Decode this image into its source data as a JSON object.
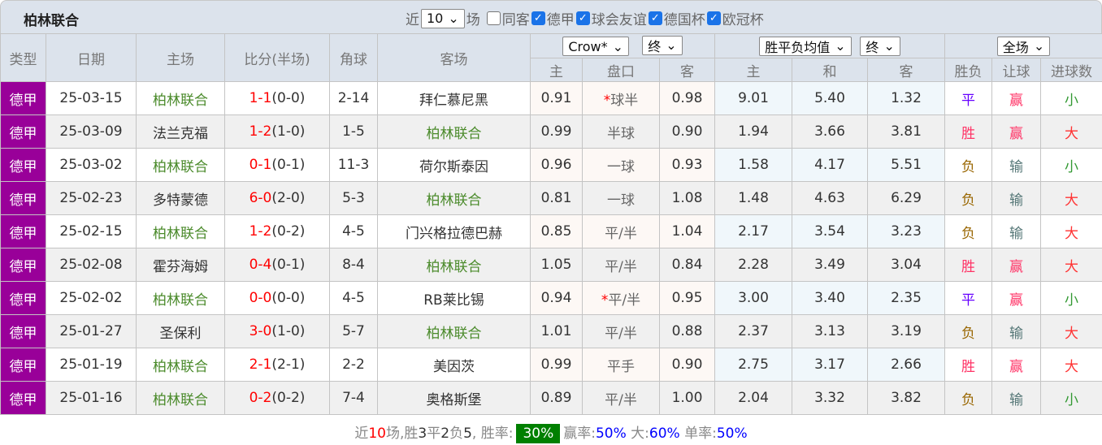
{
  "title": "柏林联合",
  "filters": {
    "recent_prefix": "近",
    "recent_value": "10",
    "recent_suffix": "场",
    "same_host": "同客",
    "leagues": [
      "德甲",
      "球会友谊",
      "德国杯",
      "欧冠杯"
    ]
  },
  "header": {
    "type": "类型",
    "date": "日期",
    "home": "主场",
    "score": "比分(半场)",
    "corner": "角球",
    "away": "客场",
    "company_select": "Crow*",
    "asia_stage": "终",
    "euro_select": "胜平负均值",
    "euro_stage": "终",
    "scope_select": "全场",
    "asia_home": "主",
    "asia_line": "盘口",
    "asia_away": "客",
    "euro_home": "主",
    "euro_draw": "和",
    "euro_away": "客",
    "result": "胜负",
    "handicap": "让球",
    "goals": "进球数"
  },
  "rows": [
    {
      "type": "德甲",
      "date": "25-03-15",
      "home": "柏林联合",
      "score": "1-1",
      "half": "(0-0)",
      "corner": "2-14",
      "away": "拜仁慕尼黑",
      "ah": "0.91",
      "star": "*",
      "line": "球半",
      "aa": "0.98",
      "eh": "9.01",
      "ed": "5.40",
      "ea": "1.32",
      "res": "平",
      "hc": "赢",
      "gl": "小"
    },
    {
      "type": "德甲",
      "date": "25-03-09",
      "home": "法兰克福",
      "score": "1-2",
      "half": "(1-0)",
      "corner": "1-5",
      "away": "柏林联合",
      "ah": "0.99",
      "star": "",
      "line": "半球",
      "aa": "0.90",
      "eh": "1.94",
      "ed": "3.66",
      "ea": "3.81",
      "res": "胜",
      "hc": "赢",
      "gl": "大"
    },
    {
      "type": "德甲",
      "date": "25-03-02",
      "home": "柏林联合",
      "score": "0-1",
      "half": "(0-1)",
      "corner": "11-3",
      "away": "荷尔斯泰因",
      "ah": "0.96",
      "star": "",
      "line": "一球",
      "aa": "0.93",
      "eh": "1.58",
      "ed": "4.17",
      "ea": "5.51",
      "res": "负",
      "hc": "输",
      "gl": "小"
    },
    {
      "type": "德甲",
      "date": "25-02-23",
      "home": "多特蒙德",
      "score": "6-0",
      "half": "(2-0)",
      "corner": "5-3",
      "away": "柏林联合",
      "ah": "0.81",
      "star": "",
      "line": "一球",
      "aa": "1.08",
      "eh": "1.48",
      "ed": "4.63",
      "ea": "6.29",
      "res": "负",
      "hc": "输",
      "gl": "大"
    },
    {
      "type": "德甲",
      "date": "25-02-15",
      "home": "柏林联合",
      "score": "1-2",
      "half": "(0-2)",
      "corner": "4-5",
      "away": "门兴格拉德巴赫",
      "ah": "0.85",
      "star": "",
      "line": "平/半",
      "aa": "1.04",
      "eh": "2.17",
      "ed": "3.54",
      "ea": "3.23",
      "res": "负",
      "hc": "输",
      "gl": "大"
    },
    {
      "type": "德甲",
      "date": "25-02-08",
      "home": "霍芬海姆",
      "score": "0-4",
      "half": "(0-1)",
      "corner": "8-4",
      "away": "柏林联合",
      "ah": "1.05",
      "star": "",
      "line": "平/半",
      "aa": "0.84",
      "eh": "2.28",
      "ed": "3.49",
      "ea": "3.04",
      "res": "胜",
      "hc": "赢",
      "gl": "大"
    },
    {
      "type": "德甲",
      "date": "25-02-02",
      "home": "柏林联合",
      "score": "0-0",
      "half": "(0-0)",
      "corner": "4-5",
      "away": "RB莱比锡",
      "ah": "0.94",
      "star": "*",
      "line": "平/半",
      "aa": "0.95",
      "eh": "3.00",
      "ed": "3.40",
      "ea": "2.35",
      "res": "平",
      "hc": "赢",
      "gl": "小"
    },
    {
      "type": "德甲",
      "date": "25-01-27",
      "home": "圣保利",
      "score": "3-0",
      "half": "(1-0)",
      "corner": "5-7",
      "away": "柏林联合",
      "ah": "1.01",
      "star": "",
      "line": "平/半",
      "aa": "0.88",
      "eh": "2.37",
      "ed": "3.13",
      "ea": "3.19",
      "res": "负",
      "hc": "输",
      "gl": "大"
    },
    {
      "type": "德甲",
      "date": "25-01-19",
      "home": "柏林联合",
      "score": "2-1",
      "half": "(2-1)",
      "corner": "2-2",
      "away": "美因茨",
      "ah": "0.99",
      "star": "",
      "line": "平手",
      "aa": "0.90",
      "eh": "2.75",
      "ed": "3.17",
      "ea": "2.66",
      "res": "胜",
      "hc": "赢",
      "gl": "大"
    },
    {
      "type": "德甲",
      "date": "25-01-16",
      "home": "柏林联合",
      "score": "0-2",
      "half": "(0-2)",
      "corner": "7-4",
      "away": "奥格斯堡",
      "ah": "0.89",
      "star": "",
      "line": "平/半",
      "aa": "1.00",
      "eh": "2.04",
      "ed": "3.32",
      "ea": "3.82",
      "res": "负",
      "hc": "输",
      "gl": "小"
    }
  ],
  "footer": {
    "p1": "近",
    "n": "10",
    "p2": "场,",
    "w_l": "胜",
    "w": "3",
    "d_l": "平",
    "d": "2",
    "l_l": "负",
    "l": "5",
    "p3": ", 胜率:",
    "winrate": "30%",
    "hc_l": "赢率:",
    "hc": "50%",
    "big_l": "大:",
    "big": "60%",
    "odd_l": "单率:",
    "odd": "50%"
  }
}
